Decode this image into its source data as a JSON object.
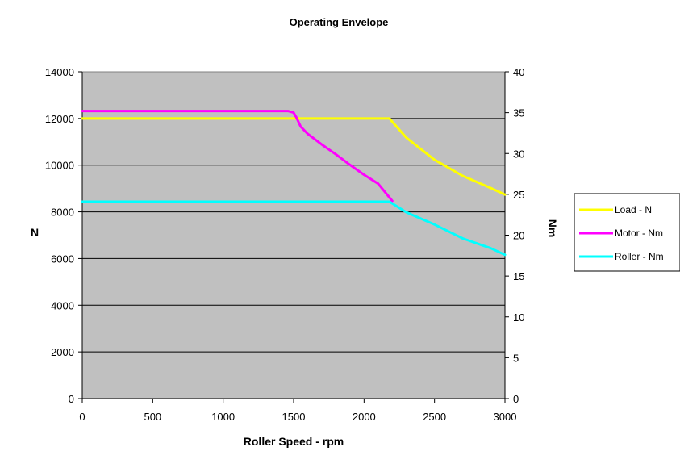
{
  "chart_data": {
    "type": "line",
    "title": "Operating Envelope",
    "xlabel": "Roller Speed - rpm",
    "ylabel": "N",
    "y2label": "Nm",
    "xlim": [
      0,
      3000
    ],
    "ylim": [
      0,
      14000
    ],
    "y2lim": [
      0,
      40
    ],
    "xticks": [
      "0",
      "500",
      "1000",
      "1500",
      "2000",
      "2500",
      "3000"
    ],
    "yticks": [
      "0",
      "2000",
      "4000",
      "6000",
      "8000",
      "10000",
      "12000",
      "14000"
    ],
    "y2ticks": [
      "0",
      "5",
      "10",
      "15",
      "20",
      "25",
      "30",
      "35",
      "40"
    ],
    "grid": "horizontal",
    "plot_background": "#c0c0c0",
    "legend": "right",
    "series": [
      {
        "name": "Load - N",
        "axis": "left",
        "color": "#ffff00",
        "x": [
          0,
          2180,
          2300,
          2500,
          2700,
          2900,
          3000
        ],
        "y": [
          12000,
          12000,
          11180,
          10230,
          9540,
          9020,
          8740
        ]
      },
      {
        "name": "Motor - Nm",
        "axis": "right",
        "color": "#ff00ff",
        "x": [
          0,
          1460,
          1500,
          1520,
          1550,
          1600,
          1700,
          1800,
          1900,
          2000,
          2100,
          2200
        ],
        "y": [
          35.2,
          35.2,
          35.0,
          34.4,
          33.3,
          32.4,
          31.1,
          29.9,
          28.6,
          27.4,
          26.3,
          24.2
        ]
      },
      {
        "name": "Roller - Nm",
        "axis": "right",
        "color": "#00ffff",
        "x": [
          0,
          2180,
          2300,
          2500,
          2700,
          2900,
          3000
        ],
        "y": [
          24.1,
          24.1,
          22.8,
          21.3,
          19.6,
          18.4,
          17.6
        ]
      }
    ]
  }
}
